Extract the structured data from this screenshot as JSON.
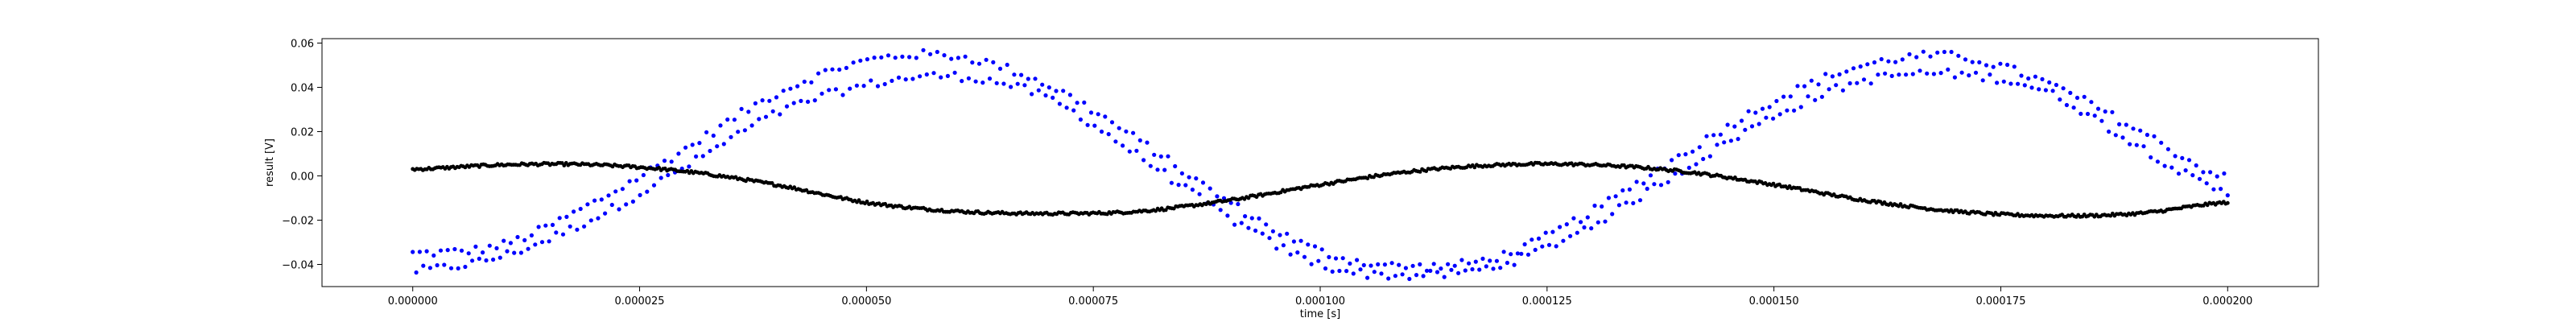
{
  "chart_data": {
    "type": "scatter",
    "xlabel": "time [s]",
    "ylabel": "result [V]",
    "xlim": [
      -1e-05,
      0.00021
    ],
    "ylim": [
      -0.05,
      0.062
    ],
    "x_ticks": [
      0.0,
      2.5e-05,
      5e-05,
      7.5e-05,
      0.0001,
      0.000125,
      0.00015,
      0.000175,
      0.0002
    ],
    "x_tick_labels": [
      "0.000000",
      "0.000025",
      "0.000050",
      "0.000075",
      "0.000100",
      "0.000125",
      "0.000150",
      "0.000175",
      "0.000200"
    ],
    "y_ticks": [
      -0.04,
      -0.02,
      0.0,
      0.02,
      0.04,
      0.06
    ],
    "y_tick_labels": [
      "−0.04",
      "−0.02",
      "0.00",
      "0.02",
      "0.04",
      "0.06"
    ],
    "grid": false,
    "series": [
      {
        "color": "#0000ff",
        "marker": "dot",
        "x": [
          0.0,
          1e-05,
          2e-05,
          3e-05,
          4e-05,
          5e-05,
          6e-05,
          7e-05,
          8e-05,
          9e-05,
          0.0001,
          0.00011,
          0.00012,
          0.00013,
          0.00014,
          0.00015,
          0.00016,
          0.00017,
          0.00018,
          0.00019,
          0.0002
        ],
        "y_upper": [
          -0.035,
          -0.031,
          -0.012,
          0.012,
          0.037,
          0.052,
          0.054,
          0.041,
          0.016,
          -0.012,
          -0.034,
          -0.041,
          -0.036,
          -0.016,
          0.01,
          0.034,
          0.05,
          0.054,
          0.042,
          0.021,
          -0.001
        ],
        "y_lower": [
          -0.043,
          -0.036,
          -0.019,
          0.004,
          0.028,
          0.041,
          0.045,
          0.035,
          0.009,
          -0.019,
          -0.04,
          -0.045,
          -0.04,
          -0.022,
          0.003,
          0.027,
          0.043,
          0.046,
          0.038,
          0.014,
          -0.008
        ]
      },
      {
        "color": "#000000",
        "marker": "dot",
        "x": [
          0.0,
          1e-05,
          2e-05,
          3e-05,
          4e-05,
          5e-05,
          6e-05,
          7e-05,
          8e-05,
          9e-05,
          0.0001,
          0.00011,
          0.00012,
          0.00013,
          0.00014,
          0.00015,
          0.00016,
          0.00017,
          0.00018,
          0.00019,
          0.0002
        ],
        "y": [
          0.003,
          0.005,
          0.005,
          0.002,
          -0.004,
          -0.012,
          -0.016,
          -0.017,
          -0.016,
          -0.011,
          -0.004,
          0.002,
          0.005,
          0.005,
          0.002,
          -0.004,
          -0.011,
          -0.016,
          -0.018,
          -0.017,
          -0.012
        ]
      }
    ]
  }
}
